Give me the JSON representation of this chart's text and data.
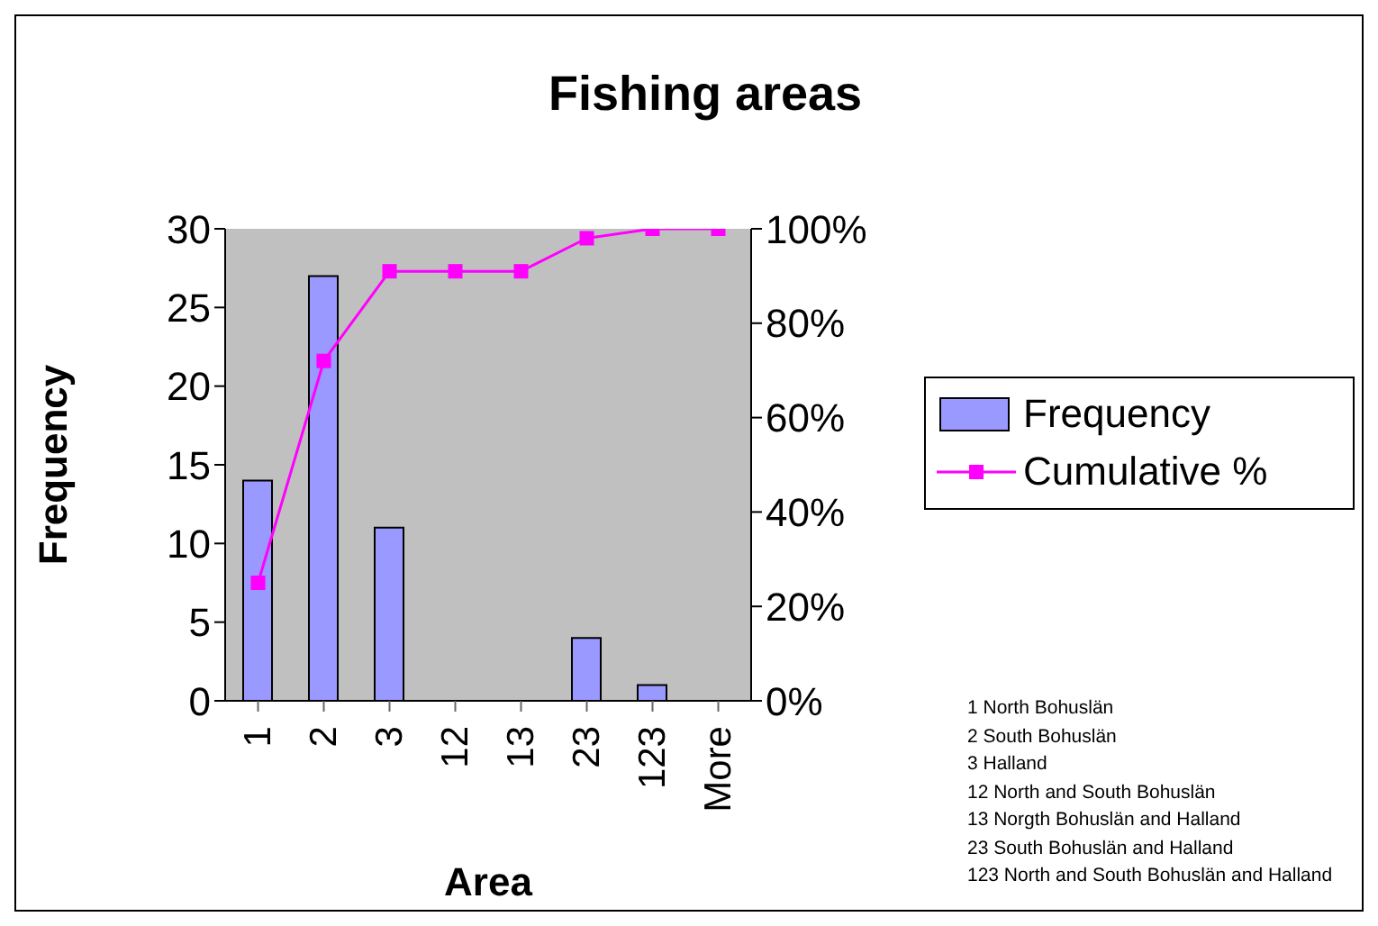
{
  "chart_data": {
    "type": "bar",
    "title": "Fishing areas",
    "xlabel": "Area",
    "ylabel": "Frequency",
    "categories": [
      "1",
      "2",
      "3",
      "12",
      "13",
      "23",
      "123",
      "More"
    ],
    "series": [
      {
        "name": "Frequency",
        "color": "#9999ff",
        "values": [
          14,
          27,
          11,
          0,
          0,
          4,
          1,
          0
        ]
      },
      {
        "name": "Cumulative %",
        "type": "line",
        "axis": "y2",
        "color": "#ff00ff",
        "values": [
          25,
          72,
          91,
          91,
          91,
          98,
          100,
          100
        ]
      }
    ],
    "ylim": [
      0,
      30
    ],
    "yticks": [
      0,
      5,
      10,
      15,
      20,
      25,
      30
    ],
    "y2lim": [
      0,
      100
    ],
    "y2ticks": [
      {
        "value": 0,
        "label": "0%"
      },
      {
        "value": 20,
        "label": "20%"
      },
      {
        "value": 40,
        "label": "40%"
      },
      {
        "value": 60,
        "label": "60%"
      },
      {
        "value": 80,
        "label": "80%"
      },
      {
        "value": 100,
        "label": "100%"
      }
    ],
    "marker": "square",
    "legend": "right",
    "annotations": [
      "1 North Bohuslän",
      "2 South Bohuslän",
      "3 Halland",
      "12 North and South Bohuslän",
      "13 Norgth Bohuslän and Halland",
      "23 South Bohuslän and Halland",
      "123 North and South Bohuslän and Halland"
    ]
  }
}
